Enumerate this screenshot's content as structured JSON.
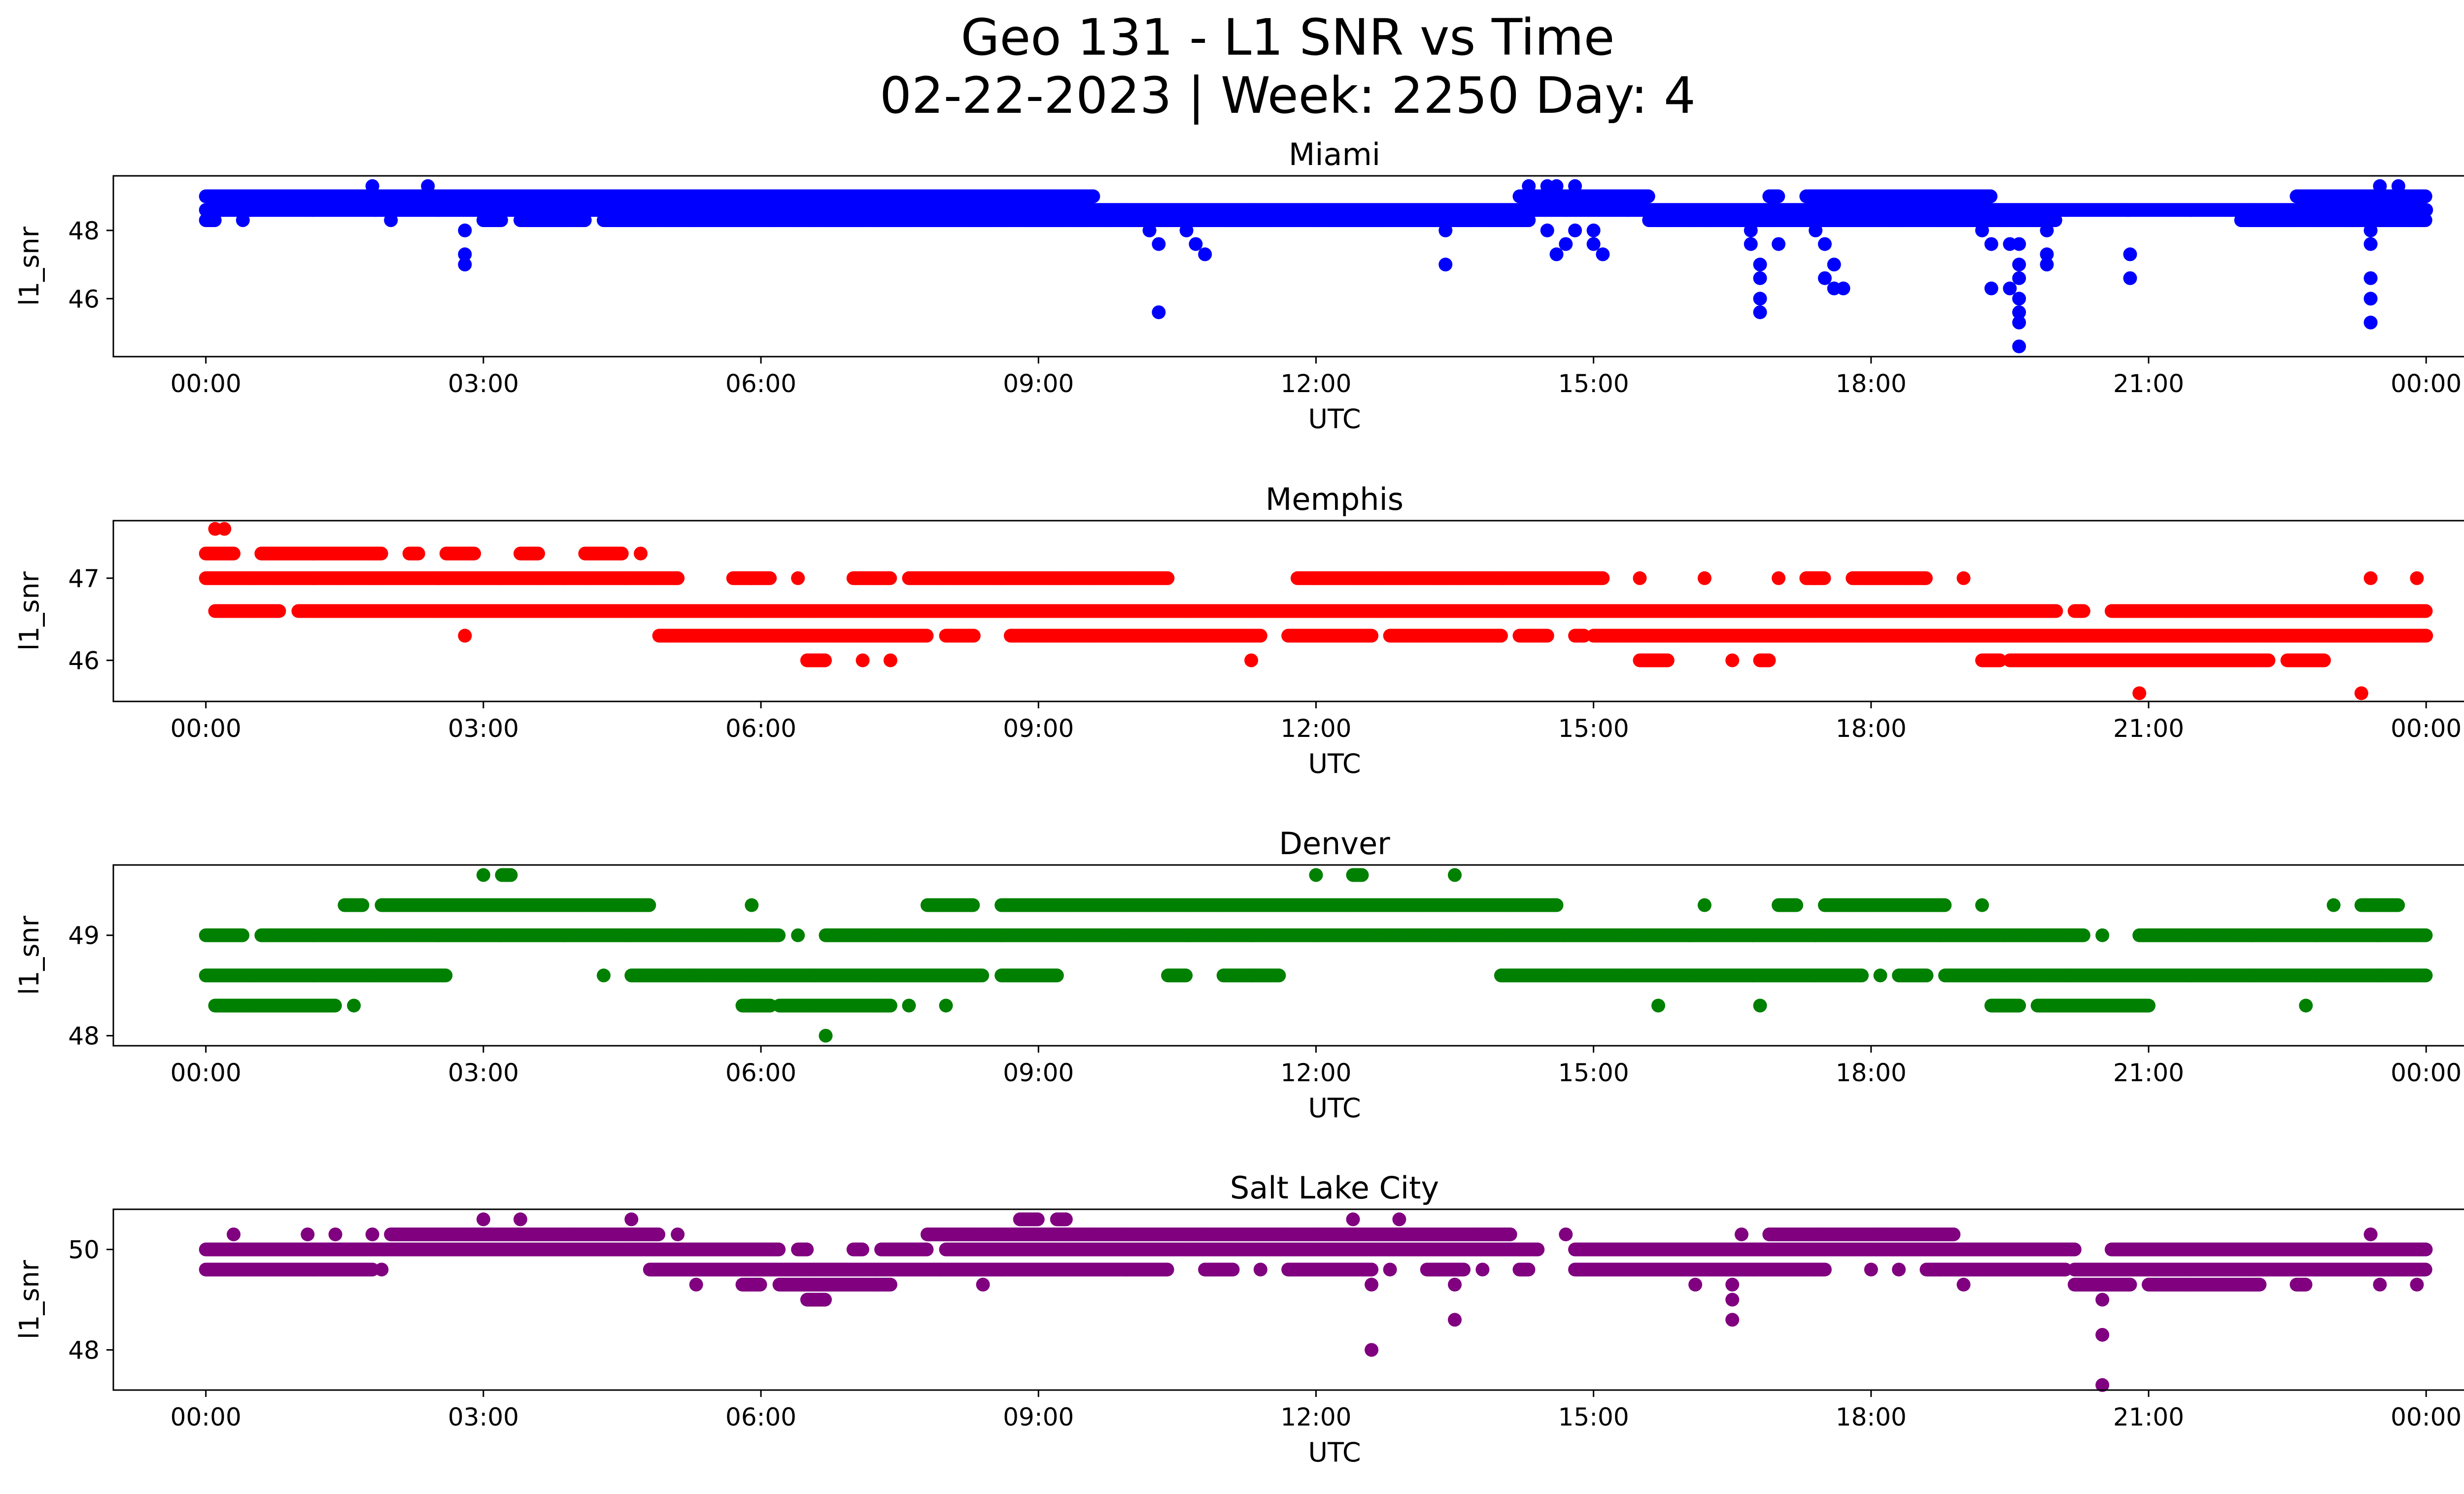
{
  "title": {
    "line1": "Geo 131 - L1 SNR vs Time",
    "line2": "02-22-2023 | Week: 2250 Day: 4"
  },
  "chart_data": [
    {
      "type": "scatter",
      "title": "Miami",
      "xlabel": "UTC",
      "ylabel": "l1_snr",
      "color": "#0000ff",
      "ylim": [
        44.3,
        49.6
      ],
      "yticks": [
        46,
        48
      ],
      "ytick_labels": [
        "46",
        "48"
      ],
      "xlim_hours": [
        -1,
        25.4
      ],
      "xticks": [
        0,
        3,
        6,
        9,
        12,
        15,
        18,
        21,
        24
      ],
      "xtick_labels": [
        "00:00",
        "03:00",
        "06:00",
        "09:00",
        "12:00",
        "15:00",
        "18:00",
        "21:00",
        "00:00"
      ],
      "bands": [
        {
          "y": 49.0,
          "segments": [
            [
              0,
              9.4
            ],
            [
              9.4,
              9.6
            ],
            [
              14.2,
              15.6
            ],
            [
              16.9,
              17.0
            ],
            [
              17.3,
              19.3
            ],
            [
              22.6,
              24
            ]
          ]
        },
        {
          "y": 48.6,
          "segments": [
            [
              0,
              24
            ]
          ]
        },
        {
          "y": 48.3,
          "segments": [
            [
              0,
              0.1
            ],
            [
              0.4,
              0.4
            ],
            [
              2.0,
              2.0
            ],
            [
              3.0,
              3.2
            ],
            [
              3.4,
              4.1
            ],
            [
              4.3,
              9.5
            ],
            [
              9.5,
              14.3
            ],
            [
              15.6,
              20.0
            ],
            [
              22.0,
              24
            ]
          ]
        }
      ],
      "points": [
        {
          "x": 1.8,
          "y": 49.3
        },
        {
          "x": 2.4,
          "y": 49.3
        },
        {
          "x": 14.3,
          "y": 49.3
        },
        {
          "x": 14.5,
          "y": 49.3
        },
        {
          "x": 14.6,
          "y": 49.3
        },
        {
          "x": 14.8,
          "y": 49.3
        },
        {
          "x": 23.5,
          "y": 49.3
        },
        {
          "x": 23.7,
          "y": 49.3
        },
        {
          "x": 2.8,
          "y": 48.0
        },
        {
          "x": 2.8,
          "y": 47.3
        },
        {
          "x": 2.8,
          "y": 47.0
        },
        {
          "x": 10.2,
          "y": 48.0
        },
        {
          "x": 10.3,
          "y": 47.6
        },
        {
          "x": 10.6,
          "y": 48.0
        },
        {
          "x": 10.7,
          "y": 47.6
        },
        {
          "x": 10.8,
          "y": 47.3
        },
        {
          "x": 10.3,
          "y": 45.6
        },
        {
          "x": 13.4,
          "y": 48.0
        },
        {
          "x": 13.4,
          "y": 47.0
        },
        {
          "x": 14.5,
          "y": 48.0
        },
        {
          "x": 14.6,
          "y": 47.3
        },
        {
          "x": 14.7,
          "y": 47.6
        },
        {
          "x": 14.8,
          "y": 48.0
        },
        {
          "x": 15.0,
          "y": 48.0
        },
        {
          "x": 15.0,
          "y": 47.6
        },
        {
          "x": 15.1,
          "y": 47.3
        },
        {
          "x": 16.7,
          "y": 48.0
        },
        {
          "x": 16.7,
          "y": 47.6
        },
        {
          "x": 16.8,
          "y": 47.0
        },
        {
          "x": 16.8,
          "y": 46.6
        },
        {
          "x": 16.8,
          "y": 46.0
        },
        {
          "x": 16.8,
          "y": 45.6
        },
        {
          "x": 17.0,
          "y": 47.6
        },
        {
          "x": 17.4,
          "y": 48.0
        },
        {
          "x": 17.5,
          "y": 47.6
        },
        {
          "x": 17.5,
          "y": 46.6
        },
        {
          "x": 17.6,
          "y": 47.0
        },
        {
          "x": 17.6,
          "y": 46.3
        },
        {
          "x": 17.7,
          "y": 46.3
        },
        {
          "x": 19.2,
          "y": 48.0
        },
        {
          "x": 19.3,
          "y": 47.6
        },
        {
          "x": 19.3,
          "y": 46.3
        },
        {
          "x": 19.5,
          "y": 47.6
        },
        {
          "x": 19.5,
          "y": 46.3
        },
        {
          "x": 19.6,
          "y": 47.6
        },
        {
          "x": 19.6,
          "y": 47.0
        },
        {
          "x": 19.6,
          "y": 46.6
        },
        {
          "x": 19.6,
          "y": 46.0
        },
        {
          "x": 19.6,
          "y": 45.6
        },
        {
          "x": 19.6,
          "y": 45.3
        },
        {
          "x": 19.6,
          "y": 44.6
        },
        {
          "x": 19.9,
          "y": 48.0
        },
        {
          "x": 19.9,
          "y": 47.3
        },
        {
          "x": 19.9,
          "y": 47.0
        },
        {
          "x": 20.8,
          "y": 47.3
        },
        {
          "x": 20.8,
          "y": 46.6
        },
        {
          "x": 23.4,
          "y": 48.0
        },
        {
          "x": 23.4,
          "y": 47.6
        },
        {
          "x": 23.4,
          "y": 46.6
        },
        {
          "x": 23.4,
          "y": 46.0
        },
        {
          "x": 23.4,
          "y": 45.3
        }
      ]
    },
    {
      "type": "scatter",
      "title": "Memphis",
      "xlabel": "UTC",
      "ylabel": "l1_snr",
      "color": "#ff0000",
      "ylim": [
        45.5,
        47.7
      ],
      "yticks": [
        46,
        47
      ],
      "ytick_labels": [
        "46",
        "47"
      ],
      "xlim_hours": [
        -1,
        25.4
      ],
      "xticks": [
        0,
        3,
        6,
        9,
        12,
        15,
        18,
        21,
        24
      ],
      "xtick_labels": [
        "00:00",
        "03:00",
        "06:00",
        "09:00",
        "12:00",
        "15:00",
        "18:00",
        "21:00",
        "00:00"
      ],
      "bands": [
        {
          "y": 47.3,
          "segments": [
            [
              0,
              0.3
            ],
            [
              0.6,
              1.9
            ],
            [
              2.2,
              2.3
            ],
            [
              2.6,
              2.9
            ],
            [
              3.4,
              3.6
            ],
            [
              4.1,
              4.5
            ],
            [
              4.7,
              4.7
            ]
          ]
        },
        {
          "y": 47.0,
          "segments": [
            [
              0,
              5.1
            ],
            [
              5.7,
              6.1
            ],
            [
              6.4,
              6.4
            ],
            [
              7.0,
              7.4
            ],
            [
              7.6,
              10.4
            ],
            [
              11.8,
              15.1
            ],
            [
              15.5,
              15.5
            ],
            [
              16.2,
              16.2
            ],
            [
              17.0,
              17.0
            ],
            [
              17.3,
              17.5
            ],
            [
              17.8,
              18.6
            ],
            [
              19.0,
              19.0
            ],
            [
              23.4,
              23.4
            ],
            [
              23.9,
              23.9
            ]
          ]
        },
        {
          "y": 46.6,
          "segments": [
            [
              0.1,
              0.3
            ],
            [
              0.3,
              0.8
            ],
            [
              1.0,
              2.9
            ],
            [
              2.9,
              20.0
            ],
            [
              20.2,
              20.3
            ],
            [
              20.6,
              24
            ]
          ]
        },
        {
          "y": 46.3,
          "segments": [
            [
              2.8,
              2.8
            ],
            [
              4.9,
              5.2
            ],
            [
              5.2,
              7.8
            ],
            [
              8.0,
              8.3
            ],
            [
              8.7,
              11.4
            ],
            [
              11.7,
              12.6
            ],
            [
              12.8,
              14.0
            ],
            [
              14.2,
              14.5
            ],
            [
              14.8,
              14.9
            ],
            [
              15.0,
              24
            ]
          ]
        },
        {
          "y": 46.0,
          "segments": [
            [
              6.5,
              6.7
            ],
            [
              7.1,
              7.1
            ],
            [
              7.4,
              7.4
            ],
            [
              11.3,
              11.3
            ],
            [
              15.5,
              15.8
            ],
            [
              16.5,
              16.5
            ],
            [
              16.8,
              16.9
            ],
            [
              19.2,
              19.4
            ],
            [
              19.5,
              22.3
            ],
            [
              22.5,
              22.9
            ]
          ]
        }
      ],
      "points": [
        {
          "x": 0.1,
          "y": 47.6
        },
        {
          "x": 0.2,
          "y": 47.6
        },
        {
          "x": 2.8,
          "y": 46.3
        },
        {
          "x": 20.9,
          "y": 45.6
        },
        {
          "x": 23.3,
          "y": 45.6
        }
      ]
    },
    {
      "type": "scatter",
      "title": "Denver",
      "xlabel": "UTC",
      "ylabel": "l1_snr",
      "color": "#008000",
      "ylim": [
        47.9,
        49.7
      ],
      "yticks": [
        48,
        49
      ],
      "ytick_labels": [
        "48",
        "49"
      ],
      "xlim_hours": [
        -1,
        25.4
      ],
      "xticks": [
        0,
        3,
        6,
        9,
        12,
        15,
        18,
        21,
        24
      ],
      "xtick_labels": [
        "00:00",
        "03:00",
        "06:00",
        "09:00",
        "12:00",
        "15:00",
        "18:00",
        "21:00",
        "00:00"
      ],
      "bands": [
        {
          "y": 49.6,
          "segments": [
            [
              3.0,
              3.0
            ],
            [
              3.2,
              3.3
            ],
            [
              12.0,
              12.0
            ],
            [
              12.4,
              12.5
            ],
            [
              13.5,
              13.5
            ]
          ]
        },
        {
          "y": 49.3,
          "segments": [
            [
              1.5,
              1.7
            ],
            [
              1.9,
              4.8
            ],
            [
              5.9,
              5.9
            ],
            [
              7.8,
              8.3
            ],
            [
              8.6,
              14.6
            ],
            [
              16.2,
              16.2
            ],
            [
              17.0,
              17.2
            ],
            [
              17.5,
              18.8
            ],
            [
              19.2,
              19.2
            ],
            [
              23.0,
              23.0
            ],
            [
              23.3,
              23.7
            ]
          ]
        },
        {
          "y": 49.0,
          "segments": [
            [
              0,
              0.4
            ],
            [
              0.6,
              6.2
            ],
            [
              6.4,
              6.4
            ],
            [
              6.7,
              20.3
            ],
            [
              20.5,
              20.5
            ],
            [
              20.9,
              24
            ]
          ]
        },
        {
          "y": 48.6,
          "segments": [
            [
              0,
              2.6
            ],
            [
              4.3,
              4.3
            ],
            [
              4.6,
              8.4
            ],
            [
              8.6,
              9.2
            ],
            [
              10.4,
              10.6
            ],
            [
              11.0,
              11.6
            ],
            [
              14.0,
              17.9
            ],
            [
              18.1,
              18.1
            ],
            [
              18.3,
              18.6
            ],
            [
              18.8,
              24
            ]
          ]
        },
        {
          "y": 48.3,
          "segments": [
            [
              0.1,
              1.4
            ],
            [
              1.6,
              1.6
            ],
            [
              5.8,
              6.1
            ],
            [
              6.2,
              7.4
            ],
            [
              7.6,
              7.6
            ],
            [
              8.0,
              8.0
            ],
            [
              15.7,
              15.7
            ],
            [
              16.8,
              16.8
            ],
            [
              19.3,
              19.6
            ],
            [
              19.8,
              21.0
            ],
            [
              22.7,
              22.7
            ]
          ]
        }
      ],
      "points": [
        {
          "x": 6.7,
          "y": 48.0
        }
      ]
    },
    {
      "type": "scatter",
      "title": "Salt Lake City",
      "xlabel": "UTC",
      "ylabel": "l1_snr",
      "color": "#800080",
      "ylim": [
        47.2,
        50.8
      ],
      "yticks": [
        48,
        50
      ],
      "ytick_labels": [
        "48",
        "50"
      ],
      "xlim_hours": [
        -1,
        25.4
      ],
      "xticks": [
        0,
        3,
        6,
        9,
        12,
        15,
        18,
        21,
        24
      ],
      "xtick_labels": [
        "00:00",
        "03:00",
        "06:00",
        "09:00",
        "12:00",
        "15:00",
        "18:00",
        "21:00",
        "00:00"
      ],
      "bands": [
        {
          "y": 50.6,
          "segments": [
            [
              3.0,
              3.0
            ],
            [
              3.4,
              3.4
            ],
            [
              4.6,
              4.6
            ],
            [
              8.8,
              9.0
            ],
            [
              9.2,
              9.3
            ],
            [
              12.4,
              12.4
            ],
            [
              12.9,
              12.9
            ]
          ]
        },
        {
          "y": 50.3,
          "segments": [
            [
              0.3,
              0.3
            ],
            [
              1.1,
              1.1
            ],
            [
              1.4,
              1.4
            ],
            [
              1.8,
              1.8
            ],
            [
              2.0,
              4.9
            ],
            [
              5.1,
              5.1
            ],
            [
              7.8,
              14.1
            ],
            [
              14.7,
              14.7
            ],
            [
              16.6,
              16.6
            ],
            [
              16.9,
              18.9
            ],
            [
              23.4,
              23.4
            ]
          ]
        },
        {
          "y": 50.0,
          "segments": [
            [
              0,
              6.2
            ],
            [
              6.4,
              6.5
            ],
            [
              7.0,
              7.1
            ],
            [
              7.3,
              7.8
            ],
            [
              8.0,
              14.4
            ],
            [
              14.8,
              20.2
            ],
            [
              20.6,
              24
            ]
          ]
        },
        {
          "y": 49.6,
          "segments": [
            [
              0,
              1.8
            ],
            [
              1.9,
              1.9
            ],
            [
              4.8,
              10.4
            ],
            [
              10.8,
              11.1
            ],
            [
              11.4,
              11.4
            ],
            [
              11.7,
              12.6
            ],
            [
              12.8,
              12.8
            ],
            [
              13.2,
              13.6
            ],
            [
              13.8,
              13.8
            ],
            [
              14.2,
              14.3
            ],
            [
              14.8,
              17.5
            ],
            [
              18.0,
              18.0
            ],
            [
              18.3,
              18.3
            ],
            [
              18.6,
              20.1
            ],
            [
              20.2,
              24
            ]
          ]
        },
        {
          "y": 49.3,
          "segments": [
            [
              5.3,
              5.3
            ],
            [
              5.8,
              6.0
            ],
            [
              6.2,
              7.4
            ],
            [
              8.4,
              8.4
            ],
            [
              16.1,
              16.1
            ],
            [
              16.5,
              16.5
            ],
            [
              19.0,
              19.0
            ],
            [
              20.2,
              20.8
            ],
            [
              21.0,
              22.2
            ],
            [
              22.6,
              22.7
            ],
            [
              23.5,
              23.5
            ],
            [
              23.9,
              23.9
            ]
          ]
        },
        {
          "y": 49.0,
          "segments": [
            [
              6.5,
              6.7
            ],
            [
              20.5,
              20.5
            ],
            [
              16.5,
              16.5
            ]
          ]
        }
      ],
      "points": [
        {
          "x": 12.6,
          "y": 49.6
        },
        {
          "x": 12.6,
          "y": 49.3
        },
        {
          "x": 12.6,
          "y": 48.0
        },
        {
          "x": 13.5,
          "y": 49.3
        },
        {
          "x": 13.5,
          "y": 48.6
        },
        {
          "x": 16.5,
          "y": 48.6
        },
        {
          "x": 20.5,
          "y": 48.3
        },
        {
          "x": 20.5,
          "y": 47.3
        }
      ]
    }
  ]
}
